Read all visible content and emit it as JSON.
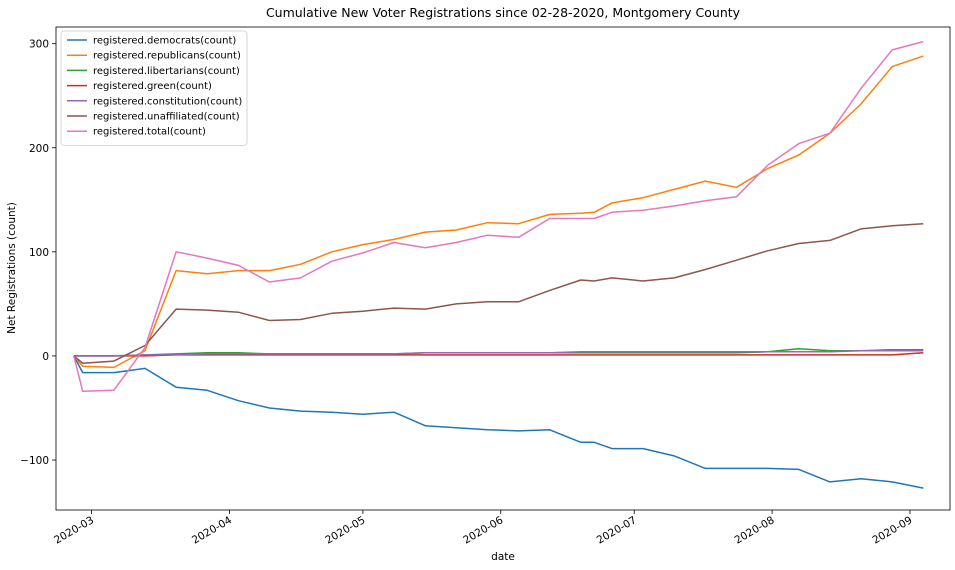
{
  "chart_data": {
    "type": "line",
    "title": "Cumulative New Voter Registrations since 02-28-2020, Montgomery County",
    "xlabel": "date",
    "ylabel": "Net Registrations (count)",
    "x_tick_labels": [
      "2020-03",
      "2020-04",
      "2020-05",
      "2020-06",
      "2020-07",
      "2020-08",
      "2020-09"
    ],
    "y_ticks": [
      -100,
      0,
      100,
      200,
      300
    ],
    "ylim": [
      -148,
      316
    ],
    "xlim": [
      "2020-02-22",
      "2020-09-10"
    ],
    "grid": false,
    "legend_position": "upper-left",
    "x": [
      "2020-02-26",
      "2020-02-28",
      "2020-03-06",
      "2020-03-13",
      "2020-03-20",
      "2020-03-27",
      "2020-04-03",
      "2020-04-10",
      "2020-04-17",
      "2020-04-24",
      "2020-05-01",
      "2020-05-08",
      "2020-05-15",
      "2020-05-22",
      "2020-05-29",
      "2020-06-05",
      "2020-06-12",
      "2020-06-19",
      "2020-06-22",
      "2020-06-26",
      "2020-07-03",
      "2020-07-10",
      "2020-07-17",
      "2020-07-24",
      "2020-07-31",
      "2020-08-07",
      "2020-08-14",
      "2020-08-21",
      "2020-08-28",
      "2020-09-04"
    ],
    "series": [
      {
        "name": "registered.democrats(count)",
        "color": "#1f77b4",
        "values": [
          0,
          -16,
          -16,
          -12,
          -30,
          -33,
          -43,
          -50,
          -53,
          -54,
          -56,
          -54,
          -67,
          -69,
          -71,
          -72,
          -71,
          -83,
          -83,
          -89,
          -89,
          -96,
          -108,
          -108,
          -108,
          -109,
          -121,
          -118,
          -121,
          -127
        ]
      },
      {
        "name": "registered.republicans(count)",
        "color": "#ff7f0e",
        "values": [
          0,
          -10,
          -11,
          5,
          82,
          79,
          82,
          82,
          88,
          100,
          107,
          112,
          119,
          121,
          128,
          127,
          136,
          137,
          138,
          147,
          152,
          160,
          168,
          162,
          180,
          193,
          214,
          242,
          278,
          288
        ]
      },
      {
        "name": "registered.libertarians(count)",
        "color": "#2ca02c",
        "values": [
          0,
          0,
          0,
          1,
          2,
          3,
          3,
          2,
          2,
          2,
          2,
          2,
          3,
          3,
          3,
          3,
          3,
          3,
          3,
          3,
          3,
          3,
          3,
          3,
          4,
          7,
          5,
          5,
          6,
          6
        ]
      },
      {
        "name": "registered.green(count)",
        "color": "#d62728",
        "values": [
          0,
          0,
          0,
          0,
          1,
          1,
          1,
          1,
          1,
          1,
          1,
          1,
          1,
          1,
          1,
          1,
          1,
          1,
          1,
          1,
          1,
          1,
          1,
          1,
          1,
          1,
          1,
          1,
          1,
          3
        ]
      },
      {
        "name": "registered.constitution(count)",
        "color": "#9467bd",
        "values": [
          0,
          0,
          0,
          1,
          1,
          2,
          2,
          2,
          2,
          2,
          2,
          2,
          3,
          3,
          3,
          3,
          3,
          4,
          4,
          4,
          4,
          4,
          4,
          4,
          4,
          4,
          4,
          5,
          5,
          5
        ]
      },
      {
        "name": "registered.unaffiliated(count)",
        "color": "#8c564b",
        "values": [
          0,
          -7,
          -5,
          10,
          45,
          44,
          42,
          34,
          35,
          41,
          43,
          46,
          45,
          50,
          52,
          52,
          63,
          73,
          72,
          75,
          72,
          75,
          83,
          92,
          101,
          108,
          111,
          122,
          125,
          127
        ]
      },
      {
        "name": "registered.total(count)",
        "color": "#e377c2",
        "values": [
          0,
          -34,
          -33,
          8,
          100,
          94,
          87,
          71,
          75,
          91,
          99,
          109,
          104,
          109,
          116,
          114,
          132,
          132,
          132,
          138,
          140,
          144,
          149,
          153,
          183,
          204,
          214,
          257,
          294,
          302
        ]
      }
    ]
  }
}
